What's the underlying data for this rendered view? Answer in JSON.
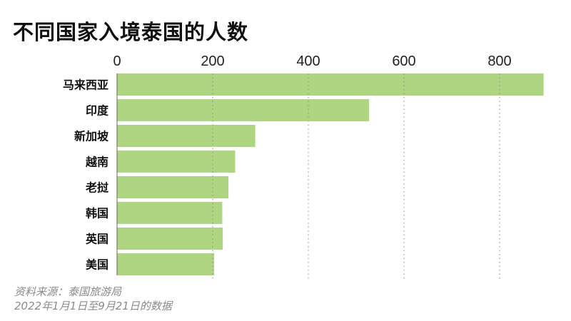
{
  "chart_data": {
    "type": "bar",
    "orientation": "horizontal",
    "title": "不同国家入境泰国的人数",
    "categories": [
      "马来西亚",
      "印度",
      "新加坡",
      "越南",
      "老挝",
      "韩国",
      "英国",
      "美国"
    ],
    "values": [
      892,
      527,
      289,
      247,
      233,
      220,
      221,
      203
    ],
    "xticks": [
      0,
      200,
      400,
      600,
      800
    ],
    "tick_labels": [
      "0",
      "200",
      "400",
      "600",
      "800"
    ],
    "xlim": [
      0,
      900
    ],
    "grid": "vertical dotted",
    "axis_position": "top",
    "bar_color": "#aed581",
    "notes": [
      "资料来源：泰国旅游局",
      "2022年1月1日至9月21日的数据"
    ]
  }
}
